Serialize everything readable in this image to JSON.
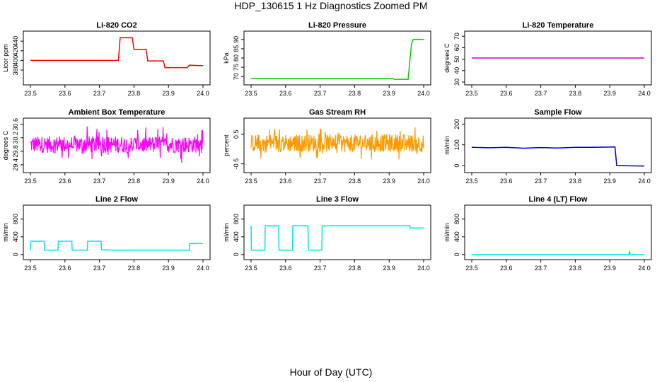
{
  "title": "HDP_130615  1 Hz Diagnostics Zoomed PM",
  "xlabel": "Hour of Day (UTC)",
  "chart_data": [
    {
      "id": "li820-co2",
      "type": "line",
      "title": "Li-820 CO2",
      "ylabel": "Licor ppm",
      "color": "#ff0000",
      "xlim": [
        23.5,
        24.0
      ],
      "ylim": [
        355,
        455
      ],
      "xticks": [
        "23.5",
        "23.6",
        "23.7",
        "23.8",
        "23.9",
        "24.0"
      ],
      "yticks": [
        "380",
        "400",
        "420",
        "440"
      ],
      "points": [
        [
          23.5,
          400
        ],
        [
          23.755,
          400
        ],
        [
          23.76,
          447
        ],
        [
          23.795,
          447
        ],
        [
          23.8,
          423
        ],
        [
          23.835,
          423
        ],
        [
          23.84,
          399
        ],
        [
          23.885,
          399
        ],
        [
          23.89,
          385
        ],
        [
          23.955,
          385
        ],
        [
          23.96,
          390
        ],
        [
          24.0,
          389
        ]
      ]
    },
    {
      "id": "li820-pressure",
      "type": "line",
      "title": "Li-820 Pressure",
      "ylabel": "kPa",
      "color": "#00cc00",
      "xlim": [
        23.5,
        24.0
      ],
      "ylim": [
        67,
        93
      ],
      "xticks": [
        "23.5",
        "23.6",
        "23.7",
        "23.8",
        "23.9",
        "24.0"
      ],
      "yticks": [
        "70",
        "75",
        "80",
        "85",
        "90"
      ],
      "points": [
        [
          23.5,
          69
        ],
        [
          23.91,
          69
        ],
        [
          23.915,
          68.5
        ],
        [
          23.955,
          68.5
        ],
        [
          23.965,
          88
        ],
        [
          23.97,
          90
        ],
        [
          24.0,
          90
        ]
      ]
    },
    {
      "id": "li820-temperature",
      "type": "line",
      "title": "Li-820 Temperature",
      "ylabel": "degrees C",
      "color": "#cc00cc",
      "xlim": [
        23.5,
        24.0
      ],
      "ylim": [
        30,
        72
      ],
      "xticks": [
        "23.5",
        "23.6",
        "23.7",
        "23.8",
        "23.9",
        "24.0"
      ],
      "yticks": [
        "30",
        "40",
        "50",
        "60",
        "70"
      ],
      "points": [
        [
          23.5,
          51
        ],
        [
          24.0,
          51
        ]
      ]
    },
    {
      "id": "ambient-box-temperature",
      "type": "line",
      "title": "Ambient Box Temperature",
      "ylabel": "degrees C",
      "color": "#ff00ff",
      "xlim": [
        23.5,
        24.0
      ],
      "ylim": [
        29.25,
        30.7
      ],
      "xticks": [
        "23.5",
        "23.6",
        "23.7",
        "23.8",
        "23.9",
        "24.0"
      ],
      "yticks": [
        "29.4",
        "29.8",
        "30.2",
        "30.6"
      ],
      "noise": {
        "center": 30.0,
        "spread": 0.25,
        "spike": 0.55,
        "min": 29.3,
        "max": 30.65
      }
    },
    {
      "id": "gas-stream-rh",
      "type": "line",
      "title": "Gas Stream RH",
      "ylabel": "percent",
      "color": "#ff9900",
      "xlim": [
        23.5,
        24.0
      ],
      "ylim": [
        -0.7,
        0.95
      ],
      "xticks": [
        "23.5",
        "23.6",
        "23.7",
        "23.8",
        "23.9",
        "24.0"
      ],
      "yticks": [
        "-0.5",
        "0.5"
      ],
      "noise": {
        "center": 0.2,
        "spread": 0.3,
        "spike": 0.55,
        "min": -0.65,
        "max": 0.85
      }
    },
    {
      "id": "sample-flow",
      "type": "line",
      "title": "Sample Flow",
      "ylabel": "ml/min",
      "color": "#0000cc",
      "xlim": [
        23.5,
        24.0
      ],
      "ylim": [
        -20,
        215
      ],
      "xticks": [
        "23.5",
        "23.6",
        "23.7",
        "23.8",
        "23.9",
        "24.0"
      ],
      "yticks": [
        "0",
        "100",
        "200"
      ],
      "points": [
        [
          23.5,
          88
        ],
        [
          23.55,
          86
        ],
        [
          23.6,
          88
        ],
        [
          23.65,
          84
        ],
        [
          23.7,
          87
        ],
        [
          23.75,
          85
        ],
        [
          23.8,
          88
        ],
        [
          23.85,
          88
        ],
        [
          23.915,
          90
        ],
        [
          23.92,
          0
        ],
        [
          24.0,
          -2
        ]
      ]
    },
    {
      "id": "line2-flow",
      "type": "line",
      "title": "Line 2 Flow",
      "ylabel": "ml/min",
      "color": "#00e5e5",
      "xlim": [
        23.5,
        24.0
      ],
      "ylim": [
        -50,
        1050
      ],
      "xticks": [
        "23.5",
        "23.6",
        "23.7",
        "23.8",
        "23.9",
        "24.0"
      ],
      "yticks": [
        "0",
        "400",
        "800"
      ],
      "points": [
        [
          23.5,
          100
        ],
        [
          23.501,
          300
        ],
        [
          23.54,
          300
        ],
        [
          23.541,
          100
        ],
        [
          23.58,
          100
        ],
        [
          23.581,
          300
        ],
        [
          23.62,
          300
        ],
        [
          23.621,
          100
        ],
        [
          23.665,
          100
        ],
        [
          23.666,
          300
        ],
        [
          23.705,
          300
        ],
        [
          23.706,
          110
        ],
        [
          23.75,
          100
        ],
        [
          23.96,
          100
        ],
        [
          23.961,
          250
        ],
        [
          24.0,
          250
        ]
      ]
    },
    {
      "id": "line3-flow",
      "type": "line",
      "title": "Line 3 Flow",
      "ylabel": "ml/min",
      "color": "#00e5e5",
      "xlim": [
        23.5,
        24.0
      ],
      "ylim": [
        -50,
        1050
      ],
      "xticks": [
        "23.5",
        "23.6",
        "23.7",
        "23.8",
        "23.9",
        "24.0"
      ],
      "yticks": [
        "0",
        "400",
        "800"
      ],
      "points": [
        [
          23.5,
          650
        ],
        [
          23.501,
          100
        ],
        [
          23.54,
          100
        ],
        [
          23.541,
          650
        ],
        [
          23.58,
          650
        ],
        [
          23.581,
          100
        ],
        [
          23.62,
          100
        ],
        [
          23.621,
          650
        ],
        [
          23.665,
          650
        ],
        [
          23.666,
          100
        ],
        [
          23.705,
          100
        ],
        [
          23.706,
          650
        ],
        [
          23.96,
          650
        ],
        [
          23.961,
          600
        ],
        [
          24.0,
          600
        ]
      ]
    },
    {
      "id": "line4-flow",
      "type": "line",
      "title": "Line 4 (LT) Flow",
      "ylabel": "ml/min",
      "color": "#00e5e5",
      "xlim": [
        23.5,
        24.0
      ],
      "ylim": [
        -50,
        1050
      ],
      "xticks": [
        "23.5",
        "23.6",
        "23.7",
        "23.8",
        "23.9",
        "24.0"
      ],
      "yticks": [
        "0",
        "400",
        "800"
      ],
      "points": [
        [
          23.5,
          0
        ],
        [
          23.955,
          0
        ],
        [
          23.957,
          70
        ],
        [
          23.96,
          0
        ],
        [
          24.0,
          0
        ]
      ]
    }
  ]
}
